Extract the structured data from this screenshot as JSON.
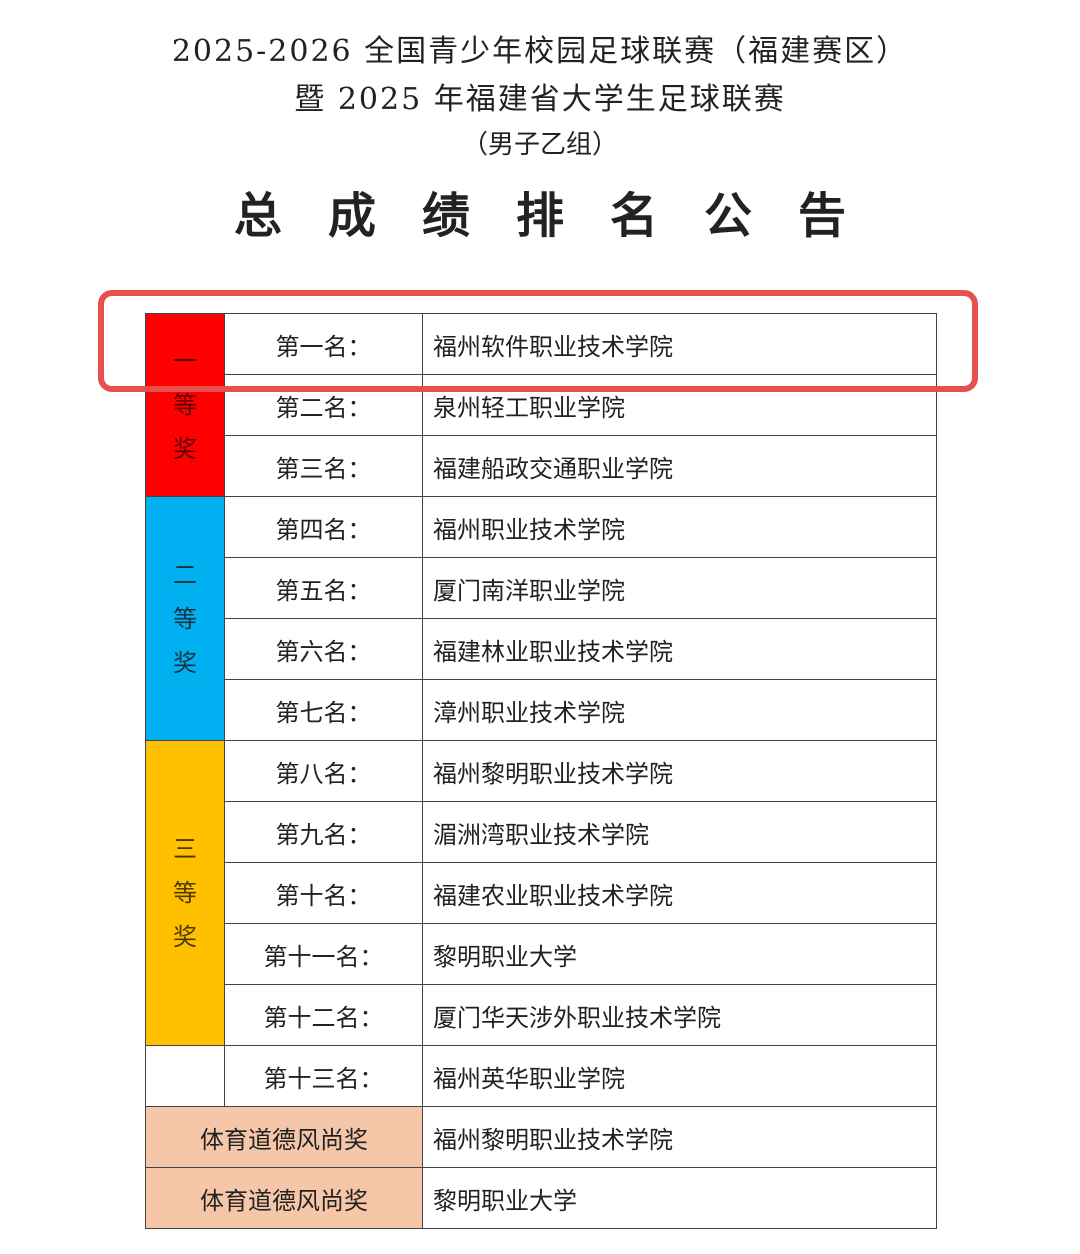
{
  "header": {
    "line1": "2025-2026 全国青少年校园足球联赛（福建赛区）",
    "line2": "暨 2025 年福建省大学生足球联赛",
    "line3": "（男子乙组）",
    "title": "总成绩排名公告"
  },
  "awards": {
    "first": "一等奖",
    "second": "二等奖",
    "third": "三等奖",
    "sportsmanship": "体育道德风尚奖"
  },
  "rankings": [
    {
      "rank": "第一名：",
      "school": "福州软件职业技术学院"
    },
    {
      "rank": "第二名：",
      "school": "泉州轻工职业学院"
    },
    {
      "rank": "第三名：",
      "school": "福建船政交通职业学院"
    },
    {
      "rank": "第四名：",
      "school": "福州职业技术学院"
    },
    {
      "rank": "第五名：",
      "school": "厦门南洋职业学院"
    },
    {
      "rank": "第六名：",
      "school": "福建林业职业技术学院"
    },
    {
      "rank": "第七名：",
      "school": "漳州职业技术学院"
    },
    {
      "rank": "第八名：",
      "school": "福州黎明职业技术学院"
    },
    {
      "rank": "第九名：",
      "school": "湄洲湾职业技术学院"
    },
    {
      "rank": "第十名：",
      "school": "福建农业职业技术学院"
    },
    {
      "rank": "第十一名：",
      "school": "黎明职业大学"
    },
    {
      "rank": "第十二名：",
      "school": "厦门华天涉外职业技术学院"
    },
    {
      "rank": "第十三名：",
      "school": "福州英华职业学院"
    }
  ],
  "sportsmanship": [
    {
      "label": "体育道德风尚奖",
      "school": "福州黎明职业技术学院"
    },
    {
      "label": "体育道德风尚奖",
      "school": "黎明职业大学"
    }
  ],
  "colors": {
    "first": "#ff0000",
    "second": "#00b0f0",
    "third": "#ffc000",
    "sportsmanship": "#f6c6a8",
    "highlight": "#e85050"
  }
}
